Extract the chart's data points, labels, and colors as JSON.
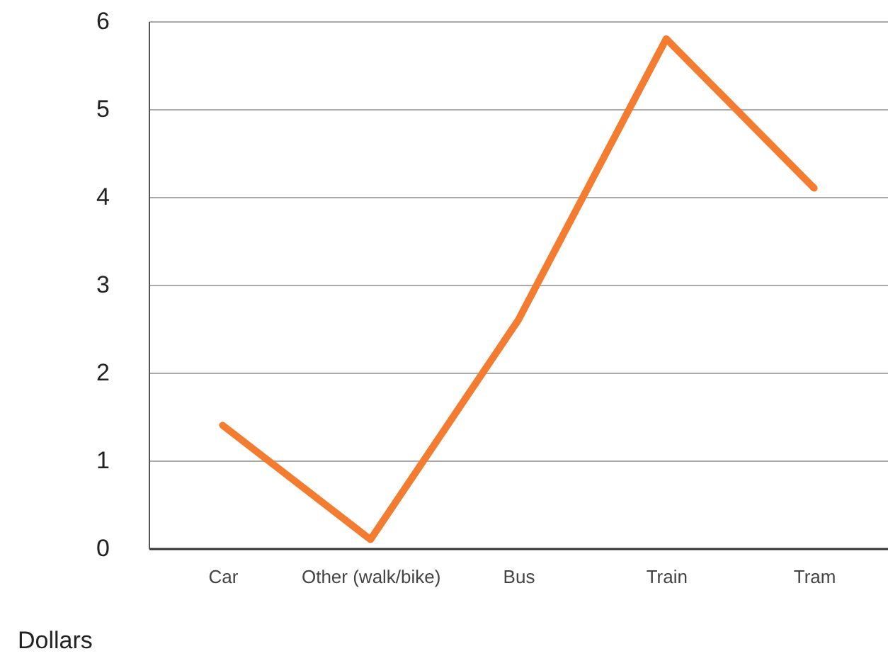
{
  "chart_data": {
    "type": "line",
    "ylabel": "Dollars",
    "categories": [
      "Car",
      "Other (walk/bike)",
      "Bus",
      "Train",
      "Tram"
    ],
    "series": [
      {
        "color": "#f47c30",
        "values": [
          1.4,
          0.1,
          2.6,
          5.8,
          4.1
        ]
      }
    ],
    "ylim": [
      0,
      6
    ],
    "yticks": [
      0,
      1,
      2,
      3,
      4,
      5,
      6
    ],
    "grid": "y"
  }
}
